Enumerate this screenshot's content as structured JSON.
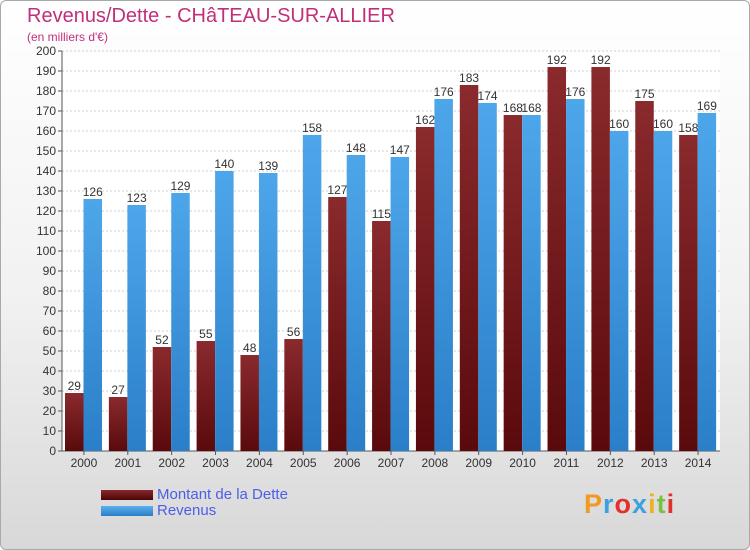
{
  "chart_data": {
    "type": "bar",
    "title": "Revenus/Dette - CHâTEAU-SUR-ALLIER",
    "subtitle": "(en milliers d'€)",
    "categories": [
      "2000",
      "2001",
      "2002",
      "2003",
      "2004",
      "2005",
      "2006",
      "2007",
      "2008",
      "2009",
      "2010",
      "2011",
      "2012",
      "2013",
      "2014"
    ],
    "series": [
      {
        "name": "Montant de la Dette",
        "color": "#7a1f22",
        "values": [
          29,
          27,
          52,
          55,
          48,
          56,
          127,
          115,
          162,
          183,
          168,
          192,
          192,
          175,
          158
        ]
      },
      {
        "name": "Revenus",
        "color": "#3d9ae2",
        "values": [
          126,
          123,
          129,
          140,
          139,
          158,
          148,
          147,
          176,
          174,
          168,
          176,
          160,
          160,
          169
        ]
      }
    ],
    "ylim": [
      0,
      200
    ],
    "ytick_step": 10,
    "grid": true,
    "legend": "bottom-left"
  },
  "logo": {
    "letters": [
      "P",
      "r",
      "o",
      "x",
      "i",
      "t",
      "i"
    ],
    "colors": [
      "#f09a20",
      "#3da1e0",
      "#e2312a",
      "#3da1e0",
      "#f0b020",
      "#7bc043",
      "#e2312a"
    ]
  }
}
